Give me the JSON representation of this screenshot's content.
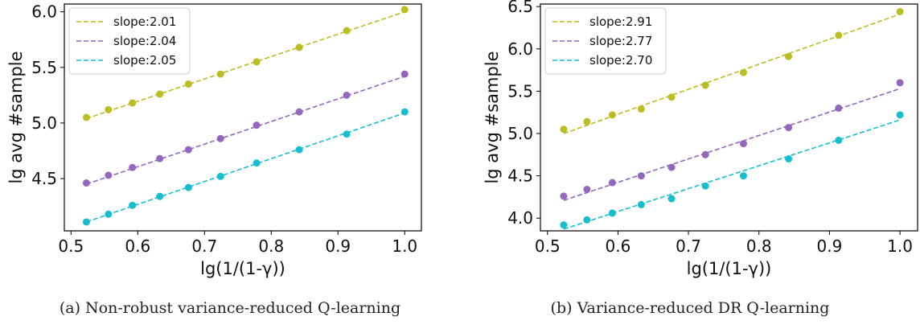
{
  "colors": {
    "olive": "#bcbd22",
    "purple": "#9467bd",
    "cyan": "#17becf"
  },
  "chart_data": [
    {
      "type": "scatter",
      "title": "",
      "xlabel": "lg(1/(1-γ))",
      "ylabel": "lg avg #sample",
      "xlim": [
        0.49,
        1.025
      ],
      "ylim": [
        4.03,
        6.07
      ],
      "xticks": [
        0.5,
        0.6,
        0.7,
        0.8,
        0.9,
        1.0
      ],
      "xtick_labels": [
        "0.5",
        "0.6",
        "0.7",
        "0.8",
        "0.9",
        "1.0"
      ],
      "yticks": [
        4.5,
        5.0,
        5.5,
        6.0
      ],
      "ytick_labels": [
        "4.5",
        "5.0",
        "5.5",
        "6.0"
      ],
      "legend_position": "top-left",
      "caption": "(a) Non-robust variance-reduced Q-learning",
      "x": [
        0.523,
        0.556,
        0.592,
        0.633,
        0.676,
        0.724,
        0.778,
        0.842,
        0.913,
        1.0
      ],
      "series": [
        {
          "label": "slope:2.01",
          "color": "#bcbd22",
          "values": [
            5.05,
            5.12,
            5.18,
            5.26,
            5.35,
            5.44,
            5.55,
            5.68,
            5.83,
            6.02
          ],
          "fit": {
            "x": [
              0.523,
              1.0
            ],
            "y": [
              5.04,
              6.0
            ]
          }
        },
        {
          "label": "slope:2.04",
          "color": "#9467bd",
          "values": [
            4.46,
            4.53,
            4.6,
            4.68,
            4.76,
            4.86,
            4.98,
            5.1,
            5.25,
            5.44
          ],
          "fit": {
            "x": [
              0.523,
              1.0
            ],
            "y": [
              4.45,
              5.42
            ]
          }
        },
        {
          "label": "slope:2.05",
          "color": "#17becf",
          "values": [
            4.11,
            4.18,
            4.26,
            4.34,
            4.42,
            4.52,
            4.64,
            4.76,
            4.9,
            5.1
          ],
          "fit": {
            "x": [
              0.523,
              1.0
            ],
            "y": [
              4.11,
              5.09
            ]
          }
        }
      ]
    },
    {
      "type": "scatter",
      "title": "",
      "xlabel": "lg(1/(1-γ))",
      "ylabel": "lg avg #sample",
      "xlim": [
        0.49,
        1.025
      ],
      "ylim": [
        3.85,
        6.53
      ],
      "xticks": [
        0.5,
        0.6,
        0.7,
        0.8,
        0.9,
        1.0
      ],
      "xtick_labels": [
        "0.5",
        "0.6",
        "0.7",
        "0.8",
        "0.9",
        "1.0"
      ],
      "yticks": [
        4.0,
        4.5,
        5.0,
        5.5,
        6.0,
        6.5
      ],
      "ytick_labels": [
        "4.0",
        "4.5",
        "5.0",
        "5.5",
        "6.0",
        "6.5"
      ],
      "legend_position": "top-left",
      "caption": "(b) Variance-reduced DR Q-learning",
      "x": [
        0.523,
        0.556,
        0.592,
        0.633,
        0.676,
        0.724,
        0.778,
        0.842,
        0.913,
        1.0
      ],
      "series": [
        {
          "label": "slope:2.91",
          "color": "#bcbd22",
          "values": [
            5.05,
            5.14,
            5.22,
            5.29,
            5.43,
            5.57,
            5.72,
            5.91,
            6.16,
            6.44
          ],
          "fit": {
            "x": [
              0.523,
              1.0
            ],
            "y": [
              5.0,
              6.41
            ]
          }
        },
        {
          "label": "slope:2.77",
          "color": "#9467bd",
          "values": [
            4.26,
            4.34,
            4.42,
            4.5,
            4.6,
            4.75,
            4.88,
            5.07,
            5.3,
            5.6
          ],
          "fit": {
            "x": [
              0.523,
              1.0
            ],
            "y": [
              4.21,
              5.53
            ]
          }
        },
        {
          "label": "slope:2.70",
          "color": "#17becf",
          "values": [
            3.92,
            3.98,
            4.06,
            4.16,
            4.23,
            4.38,
            4.5,
            4.7,
            4.92,
            5.22
          ],
          "fit": {
            "x": [
              0.523,
              1.0
            ],
            "y": [
              3.87,
              5.16
            ]
          }
        }
      ]
    }
  ]
}
